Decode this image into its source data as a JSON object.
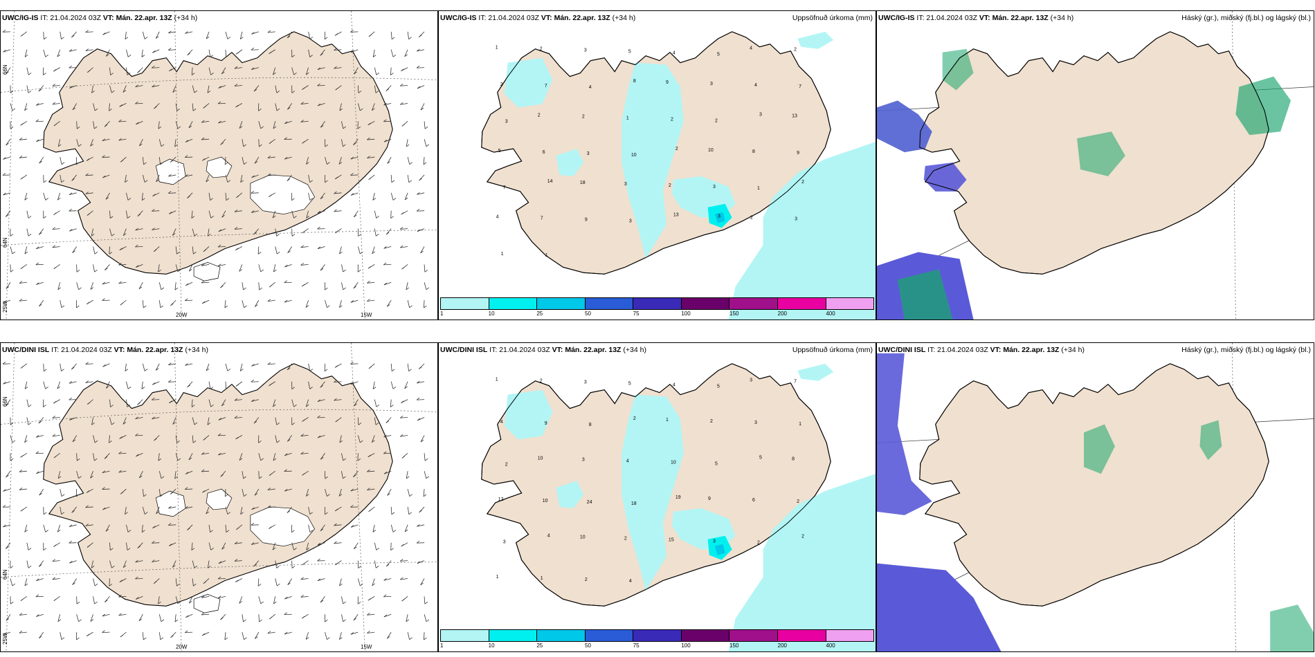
{
  "rows": [
    {
      "model": "UWC/IG-IS",
      "it_text": "IT: 21.04.2024 03Z",
      "vt_text": "VT: Mán. 22.apr. 13Z",
      "lead_text": "(+34 h)"
    },
    {
      "model": "UWC/DINI ISL",
      "it_text": "IT: 21.04.2024 03Z",
      "vt_text": "VT: Mán. 22.apr. 13Z",
      "lead_text": "(+34 h)"
    }
  ],
  "panel_titles": {
    "precip": "Uppsöfnuð úrkoma (mm)",
    "clouds": "Háský (gr.), miðský (fj.bl.) og lágský (bl.)"
  },
  "axis_labels": {
    "lon": [
      "20W",
      "15W"
    ],
    "lat": [
      "66N",
      "64N"
    ],
    "lat_corner": "25W"
  },
  "precip_colorbar": {
    "ticks": [
      "1",
      "10",
      "25",
      "50",
      "75",
      "100",
      "150",
      "200",
      "400"
    ],
    "colors": [
      "#b3f5f5",
      "#00f0f0",
      "#00c8e8",
      "#2a5cd8",
      "#3a2ab8",
      "#6a006a",
      "#a0108a",
      "#e800a0",
      "#f0a0f0"
    ]
  },
  "precip_values_top": [
    "1",
    "2",
    "3",
    "5",
    "4",
    "5",
    "4",
    "2",
    "2",
    "7",
    "4",
    "8",
    "9",
    "3",
    "4",
    "7",
    "3",
    "2",
    "2",
    "1",
    "2",
    "2",
    "3",
    "13",
    "5",
    "6",
    "3",
    "10",
    "2",
    "10",
    "8",
    "9",
    "7",
    "14",
    "18",
    "3",
    "2",
    "3",
    "1",
    "2",
    "4",
    "7",
    "9",
    "3",
    "13",
    "3",
    "2",
    "3",
    "1",
    "1"
  ],
  "precip_values_bottom": [
    "1",
    "2",
    "3",
    "5",
    "4",
    "5",
    "3",
    "7",
    "4",
    "9",
    "8",
    "2",
    "1",
    "2",
    "3",
    "1",
    "2",
    "10",
    "3",
    "4",
    "10",
    "5",
    "5",
    "8",
    "12",
    "10",
    "24",
    "18",
    "19",
    "9",
    "6",
    "2",
    "3",
    "4",
    "10",
    "2",
    "15",
    "3",
    "2",
    "2",
    "1",
    "1",
    "2",
    "4"
  ],
  "colors": {
    "land": "#f0e0cf",
    "coast": "#000000",
    "precip_light": "#b3f5f5",
    "precip_mid": "#00f0f0",
    "precip_heavy": "#00c8e8",
    "cloud_high": "#1aa56e",
    "cloud_mid": "#4f5fd0",
    "cloud_low": "#5a5ad8"
  }
}
